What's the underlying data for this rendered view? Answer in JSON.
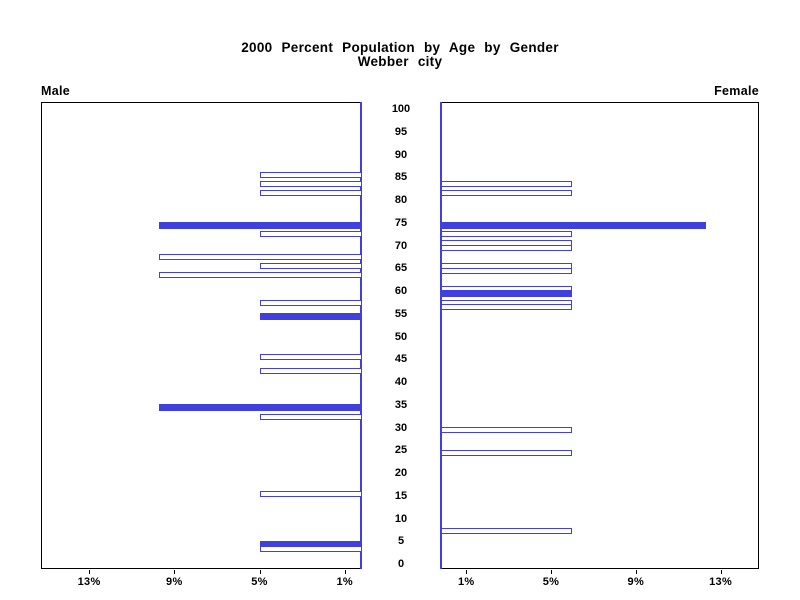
{
  "header": {
    "title_line1": "2000 Percent Population by Age by Gender",
    "title_line2": "Webber city"
  },
  "panel_labels": {
    "left": "Male",
    "right": "Female"
  },
  "colors": {
    "bar_blue": "#4040df",
    "frame": "#000000",
    "background": "#ffffff"
  },
  "chart_data": {
    "type": "bar",
    "subtype": "population-pyramid",
    "title": "2000 Percent Population by Age by Gender",
    "subtitle": "Webber city",
    "units": "percent of population",
    "grid": "off",
    "legend": "none",
    "age_axis": {
      "min": 0,
      "max": 100,
      "step": 5,
      "tick_labels": [
        "100",
        "95",
        "90",
        "85",
        "80",
        "75",
        "70",
        "65",
        "60",
        "55",
        "50",
        "45",
        "40",
        "35",
        "30",
        "25",
        "20",
        "15",
        "10",
        "5",
        "0"
      ],
      "tick_values": [
        100,
        95,
        90,
        85,
        80,
        75,
        70,
        65,
        60,
        55,
        50,
        45,
        40,
        35,
        30,
        25,
        20,
        15,
        10,
        5,
        0
      ]
    },
    "percent_axis": {
      "max_pct": 15,
      "male_ticks": [
        {
          "value": 13,
          "label": "13%"
        },
        {
          "value": 9,
          "label": "9%"
        },
        {
          "value": 5,
          "label": "5%"
        },
        {
          "value": 1,
          "label": "1%"
        }
      ],
      "female_ticks": [
        {
          "value": 1,
          "label": "1%"
        },
        {
          "value": 5,
          "label": "5%"
        },
        {
          "value": 9,
          "label": "9%"
        },
        {
          "value": 13,
          "label": "13%"
        }
      ]
    },
    "series": [
      {
        "name": "Male",
        "orientation": "right-to-left",
        "bars": [
          {
            "age": 86,
            "value": 5.0,
            "bar_style": "hollow"
          },
          {
            "age": 84,
            "value": 5.0,
            "bar_style": "hollow"
          },
          {
            "age": 82,
            "value": 5.0,
            "bar_style": "hollow"
          },
          {
            "age": 75,
            "value": 9.7,
            "bar_style": "solid"
          },
          {
            "age": 73,
            "value": 5.0,
            "bar_style": "hollow"
          },
          {
            "age": 68,
            "value": 9.7,
            "bar_style": "hollow"
          },
          {
            "age": 66,
            "value": 5.0,
            "bar_style": "hollow"
          },
          {
            "age": 64,
            "value": 9.7,
            "bar_style": "hollow"
          },
          {
            "age": 58,
            "value": 5.0,
            "bar_style": "hollow"
          },
          {
            "age": 55,
            "value": 5.0,
            "bar_style": "solid"
          },
          {
            "age": 46,
            "value": 5.0,
            "bar_style": "hollow"
          },
          {
            "age": 43,
            "value": 5.0,
            "bar_style": "hollow"
          },
          {
            "age": 35,
            "value": 9.7,
            "bar_style": "solid"
          },
          {
            "age": 33,
            "value": 5.0,
            "bar_style": "hollow"
          },
          {
            "age": 16,
            "value": 5.0,
            "bar_style": "hollow"
          },
          {
            "age": 5,
            "value": 5.0,
            "bar_style": "solid"
          },
          {
            "age": 4,
            "value": 5.0,
            "bar_style": "hollow"
          }
        ]
      },
      {
        "name": "Female",
        "orientation": "left-to-right",
        "bars": [
          {
            "age": 84,
            "value": 6.0,
            "bar_style": "hollow"
          },
          {
            "age": 82,
            "value": 6.0,
            "bar_style": "hollow"
          },
          {
            "age": 75,
            "value": 12.3,
            "bar_style": "solid"
          },
          {
            "age": 73,
            "value": 6.0,
            "bar_style": "hollow"
          },
          {
            "age": 71,
            "value": 6.0,
            "bar_style": "hollow"
          },
          {
            "age": 70,
            "value": 6.0,
            "bar_style": "hollow"
          },
          {
            "age": 66,
            "value": 6.0,
            "bar_style": "hollow"
          },
          {
            "age": 65,
            "value": 6.0,
            "bar_style": "hollow"
          },
          {
            "age": 61,
            "value": 6.0,
            "bar_style": "hollow"
          },
          {
            "age": 60,
            "value": 6.0,
            "bar_style": "solid"
          },
          {
            "age": 58,
            "value": 6.0,
            "bar_style": "hollow"
          },
          {
            "age": 57,
            "value": 6.0,
            "bar_style": "hollow"
          },
          {
            "age": 30,
            "value": 6.0,
            "bar_style": "hollow"
          },
          {
            "age": 25,
            "value": 6.0,
            "bar_style": "hollow"
          },
          {
            "age": 8,
            "value": 6.0,
            "bar_style": "hollow"
          }
        ]
      }
    ]
  }
}
